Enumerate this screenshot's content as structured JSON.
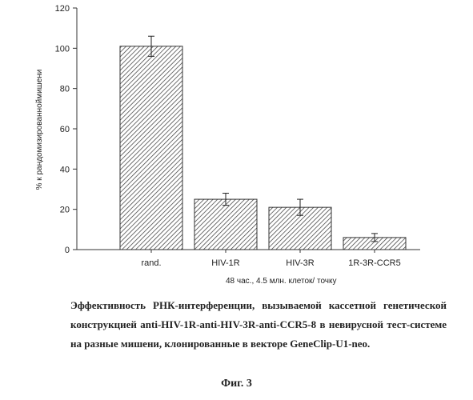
{
  "chart_data": {
    "type": "bar",
    "categories": [
      "rand.",
      "HIV-1R",
      "HIV-3R",
      "1R-3R-CCR5"
    ],
    "values": [
      101,
      25,
      21,
      6
    ],
    "error": [
      5,
      3,
      4,
      2
    ],
    "ylabel": "% к рандомизированноймишени",
    "xlabel": "48 час., 4.5 млн. клеток/ точку",
    "ylim": [
      0,
      120
    ],
    "yticks": [
      0,
      20,
      40,
      60,
      80,
      100,
      120
    ],
    "bar_fill": "hatched",
    "colors": {
      "bar": "#ffffff",
      "hatch": "#333333",
      "axis": "#333333"
    }
  },
  "caption": {
    "text": "Эффективность РНК-интерференции, вызываемой кассетной генетической конструкцией anti-HIV-1R-anti-HIV-3R-anti-CCR5-8 в невирусной тест-системе на разные мишени, клонированные в векторе GeneClip-U1-neo."
  },
  "figure_label": "Фиг. 3"
}
